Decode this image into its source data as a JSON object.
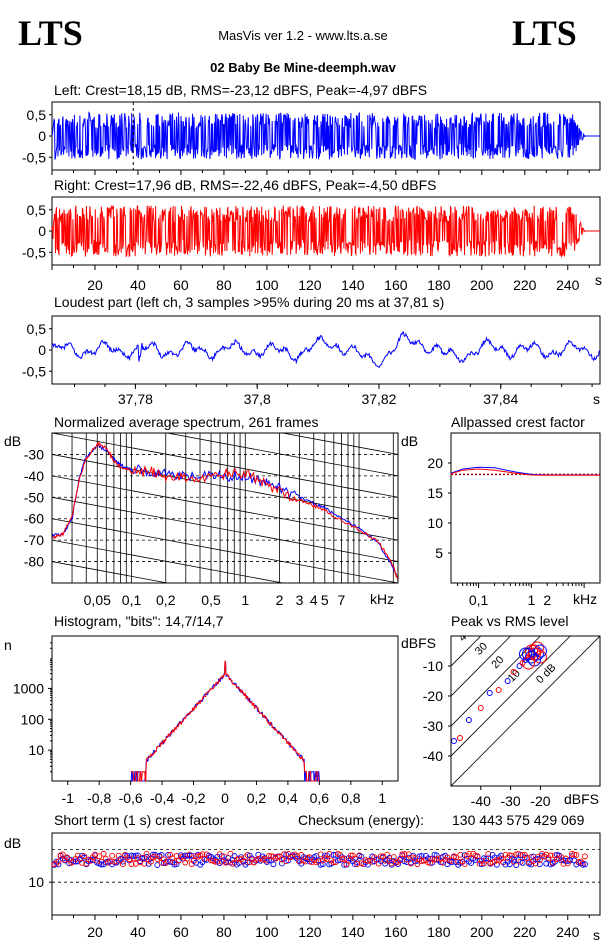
{
  "header": {
    "logo_left": "LTS",
    "logo_right": "LTS",
    "app_title": "MasVis ver 1.2 - www.lts.a.se",
    "file_name": "02 Baby Be Mine-deemph.wav"
  },
  "colors": {
    "left": "#0000ff",
    "right": "#ff0000",
    "grid": "#000000",
    "axes": "#000000"
  },
  "chart_data": [
    {
      "id": "left_waveform",
      "type": "line",
      "title": "Left: Crest=18,15 dB, RMS=-23,12 dBFS, Peak=-4,97 dBFS",
      "crest_db": 18.15,
      "rms_dbfs": -23.12,
      "peak_dbfs": -4.97,
      "xlim": [
        0,
        255
      ],
      "ylim": [
        -0.8,
        0.8
      ],
      "yticks": [
        "0,5",
        "0",
        "-0,5"
      ],
      "ytick_values": [
        0.5,
        0,
        -0.5
      ],
      "marker_x": 37.81,
      "envelope": 0.55,
      "end_time": 248
    },
    {
      "id": "right_waveform",
      "type": "line",
      "title": "Right: Crest=17,96 dB, RMS=-22,46 dBFS, Peak=-4,50 dBFS",
      "crest_db": 17.96,
      "rms_dbfs": -22.46,
      "peak_dbfs": -4.5,
      "xlim": [
        0,
        255
      ],
      "ylim": [
        -0.8,
        0.8
      ],
      "yticks": [
        "0,5",
        "0",
        "-0,5"
      ],
      "ytick_values": [
        0.5,
        0,
        -0.5
      ],
      "xticks": [
        "20",
        "40",
        "60",
        "80",
        "100",
        "120",
        "140",
        "160",
        "180",
        "200",
        "220",
        "240"
      ],
      "xtick_values": [
        20,
        40,
        60,
        80,
        100,
        120,
        140,
        160,
        180,
        200,
        220,
        240
      ],
      "x_unit": "s",
      "envelope": 0.6,
      "end_time": 248
    },
    {
      "id": "loudest_part",
      "type": "line",
      "title": "Loudest part (left  ch, 3 samples >95% during 20 ms at 37,81 s)",
      "xlim": [
        37.7663,
        37.8563
      ],
      "ylim": [
        -0.8,
        0.8
      ],
      "yticks": [
        "0,5",
        "0",
        "-0,5"
      ],
      "ytick_values": [
        0.5,
        0,
        -0.5
      ],
      "xticks": [
        "37,78",
        "37,8",
        "37,82",
        "37,84"
      ],
      "xtick_values": [
        37.78,
        37.8,
        37.82,
        37.84
      ],
      "x_unit": "s"
    },
    {
      "id": "avg_spectrum",
      "type": "line",
      "title": "Normalized average spectrum, 261 frames",
      "ylabel": "dB",
      "x_unit": "kHz",
      "xscale": "log",
      "xlim": [
        0.02,
        22
      ],
      "ylim": [
        -90,
        -20
      ],
      "yticks": [
        "-30",
        "-40",
        "-50",
        "-60",
        "-70",
        "-80"
      ],
      "ytick_values": [
        -30,
        -40,
        -50,
        -60,
        -70,
        -80
      ],
      "xticks": [
        "0,05",
        "0,1",
        "0,2",
        "0,5",
        "1",
        "2",
        "3",
        "4",
        "5",
        "7"
      ],
      "xtick_values": [
        0.05,
        0.1,
        0.2,
        0.5,
        1,
        2,
        3,
        4,
        5,
        7
      ],
      "series": [
        {
          "x": [
            0.02,
            0.025,
            0.03,
            0.035,
            0.04,
            0.05,
            0.06,
            0.07,
            0.08,
            0.1,
            0.15,
            0.2,
            0.3,
            0.5,
            0.7,
            1,
            1.5,
            2,
            3,
            4,
            5,
            7,
            10,
            15,
            20,
            22
          ],
          "y": [
            -68,
            -67,
            -60,
            -40,
            -31,
            -26,
            -28,
            -32,
            -35,
            -37,
            -38,
            -39,
            -40,
            -40,
            -40,
            -40,
            -43,
            -46,
            -50,
            -53,
            -55,
            -60,
            -64,
            -72,
            -83,
            -88
          ]
        },
        {
          "x": [
            0.02,
            0.025,
            0.03,
            0.035,
            0.04,
            0.05,
            0.06,
            0.07,
            0.08,
            0.1,
            0.15,
            0.2,
            0.3,
            0.5,
            0.7,
            1,
            1.5,
            2,
            3,
            4,
            5,
            7,
            10,
            15,
            20,
            22
          ],
          "y": [
            -69,
            -67,
            -59,
            -41,
            -32,
            -25,
            -27,
            -33,
            -36,
            -38,
            -38,
            -40,
            -41,
            -41,
            -39,
            -39,
            -44,
            -47,
            -51,
            -54,
            -56,
            -61,
            -65,
            -71,
            -82,
            -89
          ]
        }
      ]
    },
    {
      "id": "allpassed_crest",
      "type": "line",
      "title": "Allpassed crest factor",
      "ylabel": "dB",
      "x_unit": "kHz",
      "xscale": "log",
      "xlim": [
        0.03,
        20
      ],
      "ylim": [
        0,
        25
      ],
      "yticks": [
        "20",
        "15",
        "10",
        "5"
      ],
      "ytick_values": [
        20,
        15,
        10,
        5
      ],
      "xticks": [
        "0,1",
        "1",
        "2"
      ],
      "xtick_values": [
        0.1,
        1,
        2
      ],
      "series": [
        {
          "x": [
            0.03,
            0.05,
            0.1,
            0.2,
            0.5,
            1,
            2,
            5,
            10,
            20
          ],
          "y": [
            18.3,
            19.0,
            19.3,
            19.2,
            18.5,
            18.1,
            18.0,
            18.0,
            18.0,
            18.0
          ]
        },
        {
          "x": [
            0.03,
            0.05,
            0.1,
            0.2,
            0.5,
            1,
            2,
            5,
            10,
            20
          ],
          "y": [
            18.2,
            18.8,
            19.0,
            18.8,
            18.3,
            18.0,
            17.95,
            17.95,
            17.95,
            17.95
          ]
        }
      ],
      "reference": 18.1
    },
    {
      "id": "histogram",
      "type": "line",
      "title": "Histogram, \"bits\": 14,7/14,7",
      "ylabel": "n",
      "yscale": "log",
      "xlim": [
        -1.1,
        1.1
      ],
      "ylim": [
        1,
        50000
      ],
      "yticks": [
        "1000",
        "100",
        "10"
      ],
      "ytick_values": [
        1000,
        100,
        10
      ],
      "xticks": [
        "-1",
        "-0,8",
        "-0,6",
        "-0,4",
        "-0,2",
        "0",
        "0,2",
        "0,4",
        "0,6",
        "0,8",
        "1"
      ],
      "xtick_values": [
        -1,
        -0.8,
        -0.6,
        -0.4,
        -0.2,
        0,
        0.2,
        0.4,
        0.6,
        0.8,
        1
      ],
      "peak": 3000,
      "edge": 0.6
    },
    {
      "id": "peak_vs_rms",
      "type": "scatter",
      "title": "Peak vs RMS level",
      "ylabel": "dBFS",
      "x_unit": "dBFS",
      "xlim": [
        -50,
        0
      ],
      "ylim": [
        -50,
        0
      ],
      "yticks": [
        "-10",
        "-20",
        "-30",
        "-40"
      ],
      "ytick_values": [
        -10,
        -20,
        -30,
        -40
      ],
      "xticks": [
        "-40",
        "-30",
        "-20"
      ],
      "xtick_values": [
        -40,
        -30,
        -20
      ],
      "diag_labels": [
        "40",
        "30",
        "20",
        "10",
        "0 dB"
      ],
      "diag_values": [
        40,
        30,
        20,
        10,
        0
      ],
      "points": [
        [
          -49,
          -35
        ],
        [
          -47,
          -34
        ],
        [
          -44,
          -28
        ],
        [
          -40,
          -24
        ],
        [
          -37,
          -19
        ],
        [
          -34,
          -18
        ],
        [
          -31,
          -15
        ],
        [
          -29,
          -12
        ],
        [
          -27,
          -10
        ],
        [
          -26,
          -9
        ],
        [
          -25,
          -8
        ],
        [
          -24,
          -7
        ],
        [
          -23,
          -6
        ],
        [
          -22,
          -5
        ],
        [
          -21,
          -6
        ],
        [
          -20,
          -7
        ],
        [
          -22,
          -8
        ],
        [
          -23,
          -5
        ],
        [
          -24,
          -6
        ],
        [
          -21,
          -4
        ],
        [
          -20,
          -5
        ],
        [
          -22,
          -6
        ],
        [
          -23,
          -7
        ],
        [
          -24,
          -9
        ],
        [
          -25,
          -6
        ]
      ]
    },
    {
      "id": "short_term_crest",
      "type": "scatter",
      "title": "Short term (1 s) crest factor",
      "checksum_label": "Checksum (energy):",
      "checksum_value": "130 443 575 429 069",
      "ylabel": "dB",
      "xlim": [
        0,
        255
      ],
      "ylim": [
        0,
        25
      ],
      "yticks": [
        "10"
      ],
      "ytick_values": [
        10
      ],
      "reference_lines": [
        10,
        20
      ],
      "xticks": [
        "20",
        "40",
        "60",
        "80",
        "100",
        "120",
        "140",
        "160",
        "180",
        "200",
        "220",
        "240"
      ],
      "xtick_values": [
        20,
        40,
        60,
        80,
        100,
        120,
        140,
        160,
        180,
        200,
        220,
        240
      ],
      "x_unit": "s",
      "mean": 16.8,
      "end_time": 248
    }
  ]
}
